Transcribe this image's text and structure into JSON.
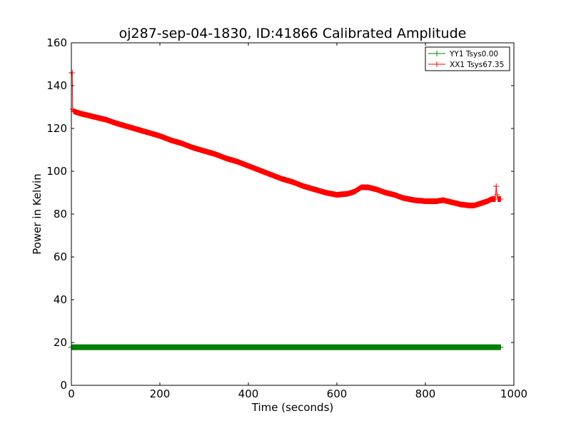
{
  "chart_data": {
    "type": "line",
    "title": "oj287-sep-04-1830, ID:41866 Calibrated Amplitude",
    "xlabel": "Time (seconds)",
    "ylabel": "Power in Kelvin",
    "xlim": [
      0,
      1000
    ],
    "ylim": [
      0,
      160
    ],
    "xticks": [
      "0",
      "200",
      "400",
      "600",
      "800",
      "1000"
    ],
    "yticks": [
      "0",
      "20",
      "40",
      "60",
      "80",
      "100",
      "120",
      "140",
      "160"
    ],
    "grid": false,
    "legend_position": "top-right",
    "series": [
      {
        "name": "YY1 Tsys0.00",
        "color": "#008000",
        "marker": "+",
        "x": [
          0,
          100,
          200,
          300,
          400,
          500,
          600,
          700,
          800,
          900,
          965,
          970
        ],
        "y": [
          17.8,
          17.8,
          17.8,
          17.8,
          17.8,
          17.8,
          17.8,
          17.8,
          17.8,
          17.8,
          17.8,
          17.8
        ]
      },
      {
        "name": "XX1 Tsys67.35",
        "color": "#ff0000",
        "marker": "+",
        "x": [
          0,
          2,
          3,
          5,
          20,
          40,
          60,
          80,
          100,
          125,
          150,
          175,
          200,
          225,
          250,
          275,
          300,
          325,
          350,
          375,
          400,
          425,
          450,
          475,
          500,
          525,
          550,
          575,
          600,
          625,
          640,
          655,
          670,
          690,
          710,
          730,
          750,
          775,
          800,
          825,
          840,
          860,
          880,
          900,
          910,
          925,
          940,
          950,
          958,
          960,
          962,
          964,
          967,
          970
        ],
        "y": [
          146,
          146,
          129,
          128,
          127,
          126,
          125,
          124,
          122.5,
          121,
          119.5,
          118,
          116.5,
          114.5,
          113,
          111,
          109.5,
          108,
          106,
          104.5,
          102.5,
          100.5,
          98.5,
          96.5,
          95,
          93,
          91.5,
          90,
          89,
          89.5,
          90.5,
          92.5,
          92.5,
          91.5,
          90,
          89,
          87.5,
          86.5,
          86,
          86,
          86.5,
          85.5,
          84.5,
          84,
          84,
          85,
          86,
          87,
          87,
          93,
          89,
          87,
          87,
          87
        ]
      }
    ]
  }
}
